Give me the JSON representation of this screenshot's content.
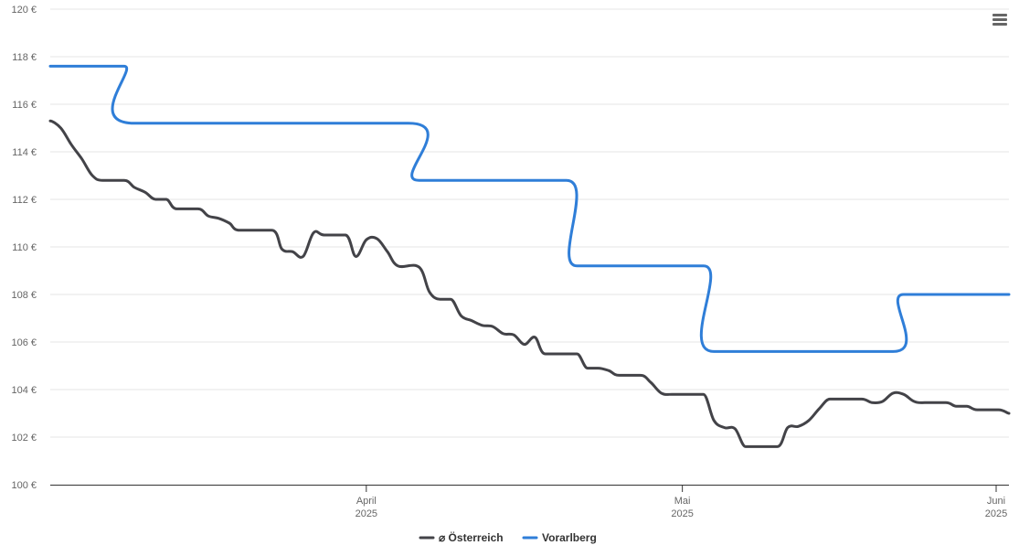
{
  "chart_data": {
    "type": "line",
    "title": "",
    "xlabel": "",
    "ylabel": "",
    "ylim": [
      100,
      120
    ],
    "y_ticks": [
      "100 €",
      "102 €",
      "104 €",
      "106 €",
      "108 €",
      "110 €",
      "112 €",
      "114 €",
      "116 €",
      "118 €",
      "120 €"
    ],
    "x_range": [
      "2025-03-02",
      "2025-06-01"
    ],
    "x_ticks": [
      {
        "date": "2025-04-01",
        "label_top": "April",
        "label_bottom": "2025"
      },
      {
        "date": "2025-05-01",
        "label_top": "Mai",
        "label_bottom": "2025"
      },
      {
        "date": "2025-06-01",
        "label_top": "Juni",
        "label_bottom": "2025"
      }
    ],
    "grid": true,
    "legend": "bottom-center",
    "series": [
      {
        "name": "⌀ Österreich",
        "color": "#434348",
        "points": [
          [
            "2025-03-02",
            115.3
          ],
          [
            "2025-03-03",
            115.0
          ],
          [
            "2025-03-04",
            114.3
          ],
          [
            "2025-03-05",
            113.7
          ],
          [
            "2025-03-06",
            113.0
          ],
          [
            "2025-03-07",
            112.8
          ],
          [
            "2025-03-09",
            112.8
          ],
          [
            "2025-03-10",
            112.5
          ],
          [
            "2025-03-11",
            112.3
          ],
          [
            "2025-03-12",
            112.0
          ],
          [
            "2025-03-13",
            112.0
          ],
          [
            "2025-03-14",
            111.6
          ],
          [
            "2025-03-16",
            111.6
          ],
          [
            "2025-03-17",
            111.3
          ],
          [
            "2025-03-18",
            111.2
          ],
          [
            "2025-03-19",
            111.0
          ],
          [
            "2025-03-20",
            110.7
          ],
          [
            "2025-03-23",
            110.7
          ],
          [
            "2025-03-24",
            109.9
          ],
          [
            "2025-03-25",
            109.8
          ],
          [
            "2025-03-26",
            109.6
          ],
          [
            "2025-03-27",
            110.6
          ],
          [
            "2025-03-28",
            110.5
          ],
          [
            "2025-03-30",
            110.5
          ],
          [
            "2025-03-31",
            109.6
          ],
          [
            "2025-04-01",
            110.3
          ],
          [
            "2025-04-02",
            110.35
          ],
          [
            "2025-04-03",
            109.8
          ],
          [
            "2025-04-04",
            109.2
          ],
          [
            "2025-04-06",
            109.15
          ],
          [
            "2025-04-07",
            108.1
          ],
          [
            "2025-04-08",
            107.8
          ],
          [
            "2025-04-09",
            107.8
          ],
          [
            "2025-04-10",
            107.1
          ],
          [
            "2025-04-11",
            106.9
          ],
          [
            "2025-04-12",
            106.7
          ],
          [
            "2025-04-13",
            106.65
          ],
          [
            "2025-04-14",
            106.35
          ],
          [
            "2025-04-15",
            106.3
          ],
          [
            "2025-04-16",
            105.9
          ],
          [
            "2025-04-17",
            106.2
          ],
          [
            "2025-04-18",
            105.5
          ],
          [
            "2025-04-20",
            105.5
          ],
          [
            "2025-04-21",
            105.5
          ],
          [
            "2025-04-22",
            104.9
          ],
          [
            "2025-04-23",
            104.9
          ],
          [
            "2025-04-24",
            104.8
          ],
          [
            "2025-04-25",
            104.6
          ],
          [
            "2025-04-27",
            104.6
          ],
          [
            "2025-04-28",
            104.3
          ],
          [
            "2025-04-29",
            103.85
          ],
          [
            "2025-04-30",
            103.8
          ],
          [
            "2025-05-01",
            103.8
          ],
          [
            "2025-05-02",
            103.8
          ],
          [
            "2025-05-03",
            103.8
          ],
          [
            "2025-05-04",
            102.7
          ],
          [
            "2025-05-05",
            102.4
          ],
          [
            "2025-05-06",
            102.35
          ],
          [
            "2025-05-07",
            101.6
          ],
          [
            "2025-05-08",
            101.6
          ],
          [
            "2025-05-10",
            101.6
          ],
          [
            "2025-05-11",
            102.4
          ],
          [
            "2025-05-12",
            102.45
          ],
          [
            "2025-05-13",
            102.7
          ],
          [
            "2025-05-14",
            103.2
          ],
          [
            "2025-05-15",
            103.6
          ],
          [
            "2025-05-16",
            103.6
          ],
          [
            "2025-05-18",
            103.6
          ],
          [
            "2025-05-19",
            103.45
          ],
          [
            "2025-05-20",
            103.5
          ],
          [
            "2025-05-21",
            103.85
          ],
          [
            "2025-05-22",
            103.8
          ],
          [
            "2025-05-23",
            103.5
          ],
          [
            "2025-05-24",
            103.45
          ],
          [
            "2025-05-26",
            103.45
          ],
          [
            "2025-05-27",
            103.3
          ],
          [
            "2025-05-28",
            103.3
          ],
          [
            "2025-05-29",
            103.15
          ],
          [
            "2025-05-31",
            103.15
          ],
          [
            "2025-06-01",
            103.0
          ]
        ]
      },
      {
        "name": "Vorarlberg",
        "color": "#2f7ed8",
        "points": [
          [
            "2025-03-02",
            117.6
          ],
          [
            "2025-03-09",
            117.6
          ],
          [
            "2025-03-10",
            115.2
          ],
          [
            "2025-04-05",
            115.2
          ],
          [
            "2025-04-06",
            112.8
          ],
          [
            "2025-04-20",
            112.8
          ],
          [
            "2025-04-21",
            109.2
          ],
          [
            "2025-05-03",
            109.2
          ],
          [
            "2025-05-04",
            105.6
          ],
          [
            "2025-05-21",
            105.6
          ],
          [
            "2025-05-22",
            108.0
          ],
          [
            "2025-06-01",
            108.0
          ]
        ]
      }
    ]
  },
  "context_menu": {
    "icon": "hamburger-menu-icon"
  }
}
